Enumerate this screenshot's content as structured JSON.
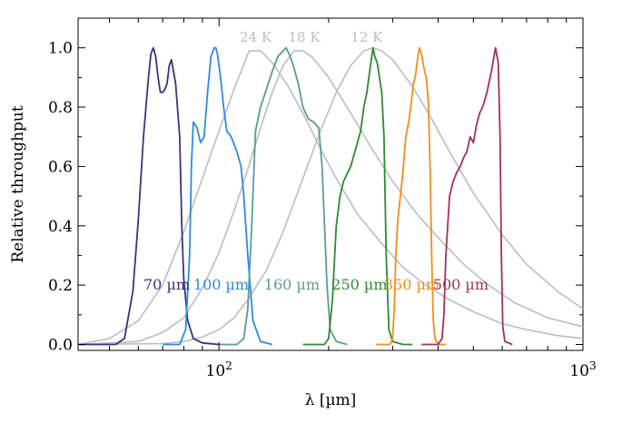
{
  "chart_data": {
    "type": "line",
    "xlabel": "λ [µm]",
    "ylabel": "Relative throughput",
    "xscale": "log",
    "xlim": [
      41,
      1000
    ],
    "ylim": [
      -0.02,
      1.1
    ],
    "grid": false,
    "x_ticks": [
      {
        "value": 100,
        "base": "10",
        "exp": "2"
      },
      {
        "value": 1000,
        "base": "10",
        "exp": "3"
      }
    ],
    "y_ticks": [
      {
        "value": 0.0,
        "label": "0.0"
      },
      {
        "value": 0.2,
        "label": "0.2"
      },
      {
        "value": 0.4,
        "label": "0.4"
      },
      {
        "value": 0.6,
        "label": "0.6"
      },
      {
        "value": 0.8,
        "label": "0.8"
      },
      {
        "value": 1.0,
        "label": "1.0"
      }
    ],
    "blackbody_color": "#bdbdbd",
    "blackbodies": [
      {
        "label": "24 K",
        "label_x": 114,
        "x": [
          41,
          50,
          60,
          70,
          80,
          90,
          100,
          110,
          121,
          130,
          140,
          155,
          170,
          190,
          210,
          240,
          280,
          320,
          370,
          430,
          500,
          600,
          700,
          850,
          1000
        ],
        "y": [
          0.0,
          0.02,
          0.08,
          0.2,
          0.38,
          0.56,
          0.72,
          0.86,
          0.99,
          0.99,
          0.95,
          0.87,
          0.78,
          0.66,
          0.56,
          0.44,
          0.34,
          0.26,
          0.2,
          0.15,
          0.11,
          0.07,
          0.05,
          0.03,
          0.02
        ]
      },
      {
        "label": "18 K",
        "label_x": 155,
        "x": [
          41,
          60,
          70,
          80,
          90,
          100,
          110,
          120,
          130,
          140,
          150,
          161,
          170,
          180,
          200,
          230,
          260,
          300,
          350,
          400,
          470,
          550,
          650,
          800,
          1000
        ],
        "y": [
          0.0,
          0.01,
          0.04,
          0.09,
          0.19,
          0.31,
          0.45,
          0.59,
          0.73,
          0.85,
          0.94,
          0.99,
          0.99,
          0.97,
          0.9,
          0.78,
          0.67,
          0.55,
          0.44,
          0.36,
          0.27,
          0.2,
          0.14,
          0.09,
          0.06
        ]
      },
      {
        "label": "12 K",
        "label_x": 230,
        "x": [
          41,
          70,
          80,
          90,
          100,
          110,
          120,
          135,
          150,
          170,
          190,
          210,
          230,
          250,
          265,
          280,
          300,
          340,
          380,
          430,
          500,
          600,
          700,
          850,
          1000
        ],
        "y": [
          0.0,
          0.003,
          0.01,
          0.025,
          0.05,
          0.09,
          0.15,
          0.25,
          0.38,
          0.56,
          0.72,
          0.85,
          0.94,
          0.99,
          1.0,
          0.99,
          0.96,
          0.87,
          0.77,
          0.65,
          0.51,
          0.37,
          0.27,
          0.18,
          0.12
        ]
      }
    ],
    "series": [
      {
        "name": "70 µm",
        "color": "#3b3380",
        "label_x": 62,
        "x": [
          41,
          52,
          55,
          58,
          60,
          62,
          64,
          65,
          66,
          67,
          68,
          69,
          70,
          71,
          72,
          73,
          74,
          76,
          78,
          79,
          80,
          82,
          85,
          90,
          100
        ],
        "y": [
          0.0,
          0.0,
          0.02,
          0.18,
          0.42,
          0.7,
          0.9,
          0.98,
          1.0,
          0.97,
          0.9,
          0.85,
          0.85,
          0.86,
          0.88,
          0.94,
          0.96,
          0.88,
          0.7,
          0.4,
          0.22,
          0.08,
          0.02,
          0.005,
          0.0
        ]
      },
      {
        "name": "100 µm",
        "color": "#2f8ae0",
        "label_x": 85,
        "x": [
          70,
          78,
          81,
          83,
          84,
          85,
          87,
          89,
          91,
          93,
          95,
          97,
          98,
          99,
          101,
          103,
          105,
          108,
          112,
          115,
          117,
          120,
          124,
          130,
          140
        ],
        "y": [
          0.0,
          0.0,
          0.05,
          0.3,
          0.6,
          0.75,
          0.73,
          0.68,
          0.7,
          0.85,
          0.97,
          1.0,
          1.0,
          0.98,
          0.9,
          0.8,
          0.72,
          0.7,
          0.65,
          0.6,
          0.5,
          0.3,
          0.08,
          0.01,
          0.0
        ]
      },
      {
        "name": "160 µm",
        "color": "#5a9b9a",
        "label_x": 133,
        "x": [
          100,
          112,
          117,
          120,
          123,
          126,
          130,
          135,
          140,
          145,
          150,
          153,
          157,
          160,
          165,
          170,
          176,
          182,
          188,
          192,
          195,
          198,
          202,
          210,
          225
        ],
        "y": [
          0.0,
          0.0,
          0.02,
          0.12,
          0.4,
          0.72,
          0.8,
          0.86,
          0.92,
          0.97,
          0.99,
          1.0,
          0.97,
          0.94,
          0.88,
          0.8,
          0.76,
          0.75,
          0.73,
          0.6,
          0.4,
          0.2,
          0.05,
          0.01,
          0.0
        ]
      },
      {
        "name": "250 µm",
        "color": "#2e8b2e",
        "label_x": 204,
        "x": [
          170,
          195,
          200,
          205,
          210,
          215,
          220,
          230,
          240,
          245,
          250,
          255,
          258,
          262,
          265,
          268,
          272,
          276,
          280,
          284,
          288,
          293,
          300,
          320,
          340
        ],
        "y": [
          0.0,
          0.0,
          0.02,
          0.15,
          0.4,
          0.5,
          0.55,
          0.6,
          0.68,
          0.72,
          0.8,
          0.85,
          0.9,
          0.96,
          1.0,
          0.97,
          0.95,
          0.9,
          0.85,
          0.7,
          0.3,
          0.05,
          0.01,
          0.0,
          0.0
        ]
      },
      {
        "name": "350 µm",
        "color": "#f28f1c",
        "label_x": 284,
        "x": [
          270,
          295,
          300,
          303,
          306,
          310,
          315,
          320,
          326,
          332,
          338,
          342,
          346,
          350,
          355,
          360,
          366,
          371,
          376,
          380,
          384,
          388,
          392,
          400,
          420
        ],
        "y": [
          0.0,
          0.0,
          0.02,
          0.12,
          0.3,
          0.42,
          0.5,
          0.58,
          0.7,
          0.75,
          0.82,
          0.88,
          0.9,
          0.95,
          1.0,
          0.98,
          0.93,
          0.9,
          0.82,
          0.6,
          0.3,
          0.08,
          0.02,
          0.0,
          0.0
        ]
      },
      {
        "name": "500 µm",
        "color": "#a3325a",
        "label_x": 387,
        "x": [
          360,
          400,
          410,
          415,
          420,
          430,
          440,
          450,
          460,
          470,
          480,
          490,
          500,
          510,
          520,
          530,
          545,
          560,
          575,
          585,
          592,
          597,
          602,
          610,
          640
        ],
        "y": [
          0.0,
          0.0,
          0.02,
          0.1,
          0.3,
          0.5,
          0.55,
          0.58,
          0.6,
          0.63,
          0.65,
          0.7,
          0.68,
          0.74,
          0.78,
          0.8,
          0.85,
          0.92,
          1.0,
          0.95,
          0.7,
          0.3,
          0.06,
          0.01,
          0.0
        ]
      }
    ]
  }
}
